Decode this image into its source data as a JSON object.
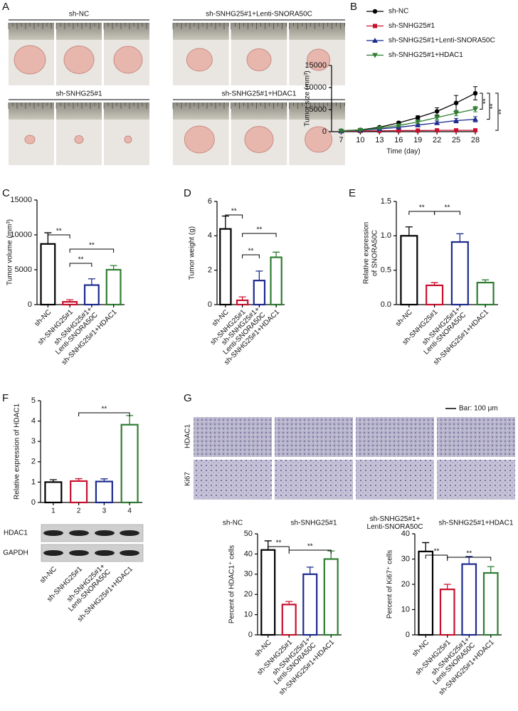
{
  "panel_labels": [
    "A",
    "B",
    "C",
    "D",
    "E",
    "F",
    "G"
  ],
  "panel_A": {
    "groups": [
      "sh-NC",
      "sh-SNHG25#1+Lenti-SNORA50C",
      "sh-SNHG25#1",
      "sh-SNHG25#1+HDAC1"
    ]
  },
  "panel_F_blot": {
    "rows": [
      "HDAC1",
      "GAPDH"
    ],
    "groups": [
      "sh-NC",
      "sh-SNHG25#1",
      [
        "sh-SNHG25#1+",
        "Lenti-SNORA50C"
      ],
      "sh-SNHG25#1+HDAC1"
    ]
  },
  "panel_G_images": {
    "rows": [
      "HDAC1",
      "Ki67"
    ],
    "columns": [
      "sh-NC",
      "sh-SNHG25#1",
      [
        "sh-SNHG25#1+",
        "Lenti-SNORA50C"
      ],
      "sh-SNHG25#1+HDAC1"
    ],
    "scale_bar": "Bar: 100 μm"
  },
  "chart_data": [
    {
      "type": "line",
      "xlabel": "Time (day)",
      "ylabel": "Tumor size (mm³)",
      "x": [
        7,
        10,
        13,
        16,
        19,
        22,
        25,
        28
      ],
      "xlim": [
        5.5,
        28
      ],
      "xticks": [
        7,
        10,
        13,
        16,
        19,
        22,
        25,
        28
      ],
      "ylim": [
        0,
        15000
      ],
      "yticks": [
        0,
        5000,
        10000,
        15000
      ],
      "legend": "top",
      "series": [
        {
          "name": "sh-NC",
          "color": "#000000",
          "marker": "circle",
          "values": [
            200,
            400,
            1000,
            2000,
            3200,
            4600,
            6500,
            8700
          ],
          "errors": [
            50,
            100,
            200,
            300,
            400,
            800,
            1700,
            1500
          ]
        },
        {
          "name": "sh-SNHG25#1",
          "color": "#c8102e",
          "marker": "square",
          "values": [
            100,
            150,
            200,
            250,
            250,
            300,
            300,
            300
          ],
          "errors": [
            30,
            40,
            50,
            60,
            60,
            80,
            80,
            100
          ]
        },
        {
          "name": "sh-SNHG25#1+Lenti-SNORA50C",
          "color": "#1c2a8f",
          "marker": "triangle-up",
          "values": [
            150,
            300,
            600,
            1000,
            1500,
            2000,
            2500,
            2800
          ],
          "errors": [
            40,
            80,
            150,
            200,
            300,
            400,
            500,
            600
          ]
        },
        {
          "name": "sh-SNHG25#1+HDAC1",
          "color": "#2e7d32",
          "marker": "triangle-down",
          "values": [
            150,
            350,
            800,
            1400,
            2200,
            3200,
            4200,
            5100
          ],
          "errors": [
            40,
            80,
            150,
            250,
            350,
            500,
            600,
            600
          ]
        }
      ],
      "annotations": [
        "**",
        "**",
        "**"
      ]
    },
    {
      "type": "bar",
      "ylabel": "Tumor volume (mm³)",
      "categories": [
        "sh-NC",
        "sh-SNHG25#1",
        [
          "sh-SNHG25#1+",
          "Lenti-SNORA50C"
        ],
        "sh-SNHG25#1+HDAC1"
      ],
      "values": [
        8700,
        400,
        2800,
        5000
      ],
      "errors": [
        1600,
        300,
        900,
        600
      ],
      "colors": [
        "#000000",
        "#c8102e",
        "#1c2a8f",
        "#2e7d32"
      ],
      "ylim": [
        0,
        15000
      ],
      "yticks": [
        0,
        5000,
        10000,
        15000
      ],
      "annotations": [
        "**",
        "**",
        "**"
      ]
    },
    {
      "type": "bar",
      "ylabel": "Tumor weight (g)",
      "categories": [
        "sh-NC",
        "sh-SNHG25#1",
        [
          "sh-SNHG25#1+",
          "Lenti-SNORA50C"
        ],
        "sh-SNHG25#1+HDAC1"
      ],
      "values": [
        4.4,
        0.25,
        1.4,
        2.75
      ],
      "errors": [
        0.75,
        0.2,
        0.55,
        0.3
      ],
      "colors": [
        "#000000",
        "#c8102e",
        "#1c2a8f",
        "#2e7d32"
      ],
      "ylim": [
        0,
        6
      ],
      "yticks": [
        0,
        2,
        4,
        6
      ],
      "annotations": [
        "**",
        "**",
        "**"
      ]
    },
    {
      "type": "bar",
      "ylabel": [
        "Relative expression",
        "of SNORA50C"
      ],
      "categories": [
        "sh-NC",
        "sh-SNHG25#1",
        [
          "sh-SNHG25#1+",
          "Lenti-SNORA50C"
        ],
        "sh-SNHG25#1+HDAC1"
      ],
      "values": [
        1.0,
        0.28,
        0.91,
        0.32
      ],
      "errors": [
        0.13,
        0.04,
        0.12,
        0.04
      ],
      "colors": [
        "#000000",
        "#c8102e",
        "#1c2a8f",
        "#2e7d32"
      ],
      "ylim": [
        0,
        1.5
      ],
      "yticks": [
        {
          "value": 0,
          "label": "0.0"
        },
        0.5,
        {
          "value": 1,
          "label": "1.0"
        },
        1.5
      ],
      "annotations": [
        "**",
        "**"
      ]
    },
    {
      "type": "bar",
      "ylabel": "Relative expression of HDAC1",
      "categories": [
        "1",
        "2",
        "3",
        "4"
      ],
      "values": [
        1.0,
        1.05,
        1.03,
        3.82
      ],
      "errors": [
        0.12,
        0.12,
        0.13,
        0.45
      ],
      "colors": [
        "#000000",
        "#c8102e",
        "#1c2a8f",
        "#2e7d32"
      ],
      "ylim": [
        0,
        5
      ],
      "yticks": [
        0,
        1,
        2,
        3,
        4,
        5
      ],
      "annotations": [
        "**"
      ]
    },
    {
      "type": "bar",
      "ylabel": "Percent of HDAC1⁺ cells",
      "categories": [
        "sh-NC",
        "sh-SNHG25#1",
        [
          "sh-SNHG25#1+",
          "Lenti-SNORA50C"
        ],
        "sh-SNHG25#1+HDAC1"
      ],
      "values": [
        42,
        15,
        30,
        37.5
      ],
      "errors": [
        4.5,
        1.5,
        3.5,
        4
      ],
      "colors": [
        "#000000",
        "#c8102e",
        "#1c2a8f",
        "#2e7d32"
      ],
      "ylim": [
        0,
        50
      ],
      "yticks": [
        0,
        10,
        20,
        30,
        40,
        50
      ],
      "annotations": [
        "**",
        "**"
      ]
    },
    {
      "type": "bar",
      "ylabel": "Percent of Ki67⁺ cells",
      "categories": [
        "sh-NC",
        "sh-SNHG25#1",
        [
          "sh-SNHG25#1+",
          "Lenti-SNORA50C"
        ],
        "sh-SNHG25#1+HDAC1"
      ],
      "values": [
        33,
        18,
        28,
        24.5
      ],
      "errors": [
        3.5,
        2,
        3,
        2.5
      ],
      "colors": [
        "#000000",
        "#c8102e",
        "#1c2a8f",
        "#2e7d32"
      ],
      "ylim": [
        0,
        40
      ],
      "yticks": [
        0,
        10,
        20,
        30,
        40
      ],
      "annotations": [
        "**",
        "**"
      ]
    }
  ]
}
